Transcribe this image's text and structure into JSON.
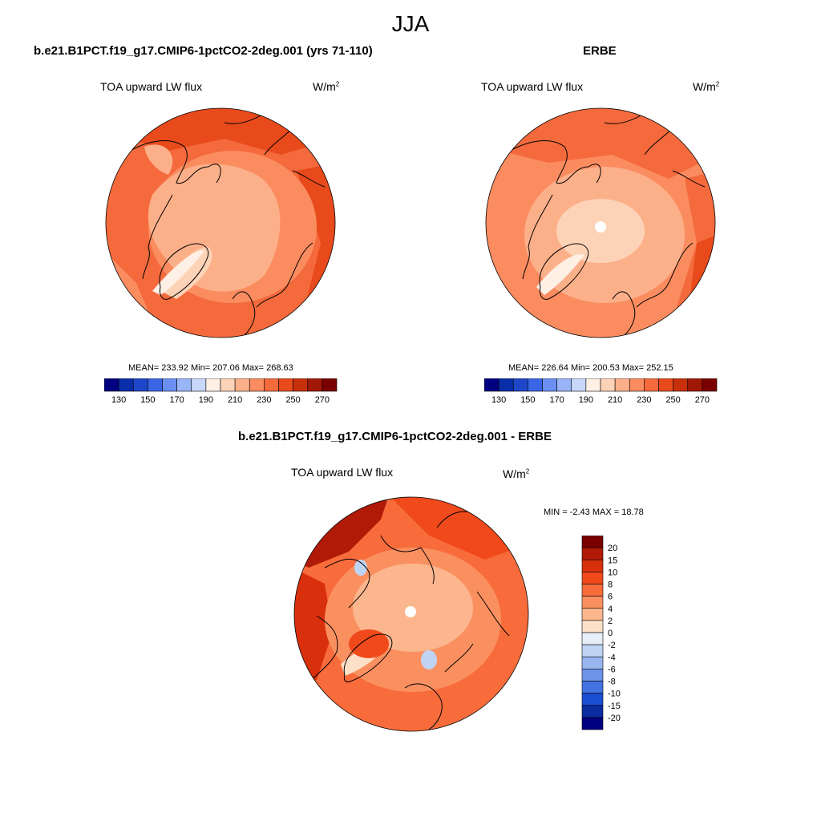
{
  "title": "JJA",
  "panels": [
    {
      "case_title": "b.e21.B1PCT.f19_g17.CMIP6-1pctCO2-2deg.001 (yrs 71-110)",
      "variable": "TOA upward LW flux",
      "units": "W/m",
      "units_sup": "2",
      "stats": "MEAN= 233.92  Min= 207.06  Max= 268.63"
    },
    {
      "case_title": "ERBE",
      "variable": "TOA upward LW flux",
      "units": "W/m",
      "units_sup": "2",
      "stats": "MEAN= 226.64  Min= 200.53  Max= 252.15"
    },
    {
      "case_title": "b.e21.B1PCT.f19_g17.CMIP6-1pctCO2-2deg.001 - ERBE",
      "variable": "TOA upward LW flux",
      "units": "W/m",
      "units_sup": "2",
      "stats": "MIN =  -2.43 MAX =  18.78"
    }
  ],
  "chart_data": [
    {
      "type": "heatmap",
      "projection": "north polar stereographic",
      "title": "b.e21.B1PCT.f19_g17.CMIP6-1pctCO2-2deg.001 (yrs 71-110)",
      "variable": "TOA upward LW flux",
      "mean": 233.92,
      "min": 207.06,
      "max": 268.63,
      "colorbar_labels": [
        "130",
        "150",
        "170",
        "190",
        "210",
        "230",
        "250",
        "270"
      ],
      "colorbar_colors": [
        "#000080",
        "#0a2ea8",
        "#1f46c8",
        "#3a66e6",
        "#6b8ff2",
        "#9ab5f7",
        "#c8d8fa",
        "#fff0e6",
        "#fdd3b8",
        "#fcb08a",
        "#fa8c60",
        "#f46a3c",
        "#e84a1c",
        "#c8300c",
        "#a01806",
        "#7a0000"
      ],
      "colorbar_position": "bottom"
    },
    {
      "type": "heatmap",
      "projection": "north polar stereographic",
      "title": "ERBE",
      "variable": "TOA upward LW flux",
      "mean": 226.64,
      "min": 200.53,
      "max": 252.15,
      "colorbar_labels": [
        "130",
        "150",
        "170",
        "190",
        "210",
        "230",
        "250",
        "270"
      ],
      "colorbar_colors": [
        "#000080",
        "#0a2ea8",
        "#1f46c8",
        "#3a66e6",
        "#6b8ff2",
        "#9ab5f7",
        "#c8d8fa",
        "#fff0e6",
        "#fdd3b8",
        "#fcb08a",
        "#fa8c60",
        "#f46a3c",
        "#e84a1c",
        "#c8300c",
        "#a01806",
        "#7a0000"
      ],
      "colorbar_position": "bottom"
    },
    {
      "type": "heatmap",
      "projection": "north polar stereographic",
      "title": "b.e21.B1PCT.f19_g17.CMIP6-1pctCO2-2deg.001 - ERBE",
      "variable": "TOA upward LW flux",
      "min": -2.43,
      "max": 18.78,
      "colorbar_labels": [
        "20",
        "15",
        "10",
        "8",
        "6",
        "4",
        "2",
        "0",
        "-2",
        "-4",
        "-6",
        "-8",
        "-10",
        "-15",
        "-20"
      ],
      "colorbar_colors": [
        "#7a0000",
        "#b01a06",
        "#d8300c",
        "#f04a1c",
        "#f86c3c",
        "#fa9060",
        "#fcb68e",
        "#fde0c8",
        "#e6eef8",
        "#c0d4f4",
        "#98b6f0",
        "#6e94ea",
        "#4472e2",
        "#1c4ed4",
        "#0a2ca0",
        "#000080"
      ],
      "colorbar_position": "right"
    }
  ]
}
